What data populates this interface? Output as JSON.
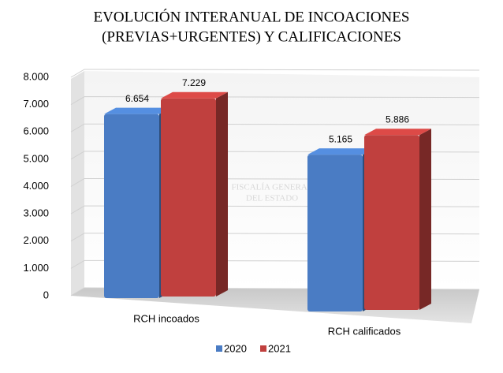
{
  "chart_data": {
    "type": "bar3d",
    "title": [
      "EVOLUCIÓN INTERANUAL DE INCOACIONES",
      "(PREVIAS+URGENTES) Y CALIFICACIONES"
    ],
    "watermark": [
      "FISCALÍA GENERAL",
      "DEL ESTADO"
    ],
    "categories": [
      "RCH incoados",
      "RCH calificados"
    ],
    "series": [
      {
        "name": "2020",
        "color": "#4a7cc4",
        "values": [
          6654,
          5165
        ],
        "value_labels": [
          "6.654",
          "5.165"
        ]
      },
      {
        "name": "2021",
        "color": "#c0403e",
        "values": [
          7229,
          5886
        ],
        "value_labels": [
          "7.229",
          "5.886"
        ]
      }
    ],
    "ylim": [
      0,
      8000
    ],
    "yticks": [
      0,
      {
        "value": 1000,
        "label": "1.000"
      },
      {
        "value": 2000,
        "label": "2.000"
      },
      {
        "value": 3000,
        "label": "3.000"
      },
      {
        "value": 4000,
        "label": "4.000"
      },
      {
        "value": 5000,
        "label": "5.000"
      },
      {
        "value": 6000,
        "label": "6.000"
      },
      {
        "value": 7000,
        "label": "7.000"
      },
      {
        "value": 8000,
        "label": "8.000"
      }
    ],
    "grid": true,
    "legend": "bottom"
  }
}
